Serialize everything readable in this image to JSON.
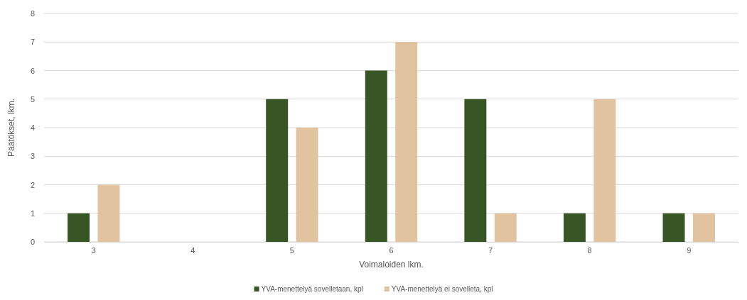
{
  "chart_data": {
    "type": "bar",
    "xlabel": "Voimaloiden lkm.",
    "ylabel": "Päätökset, lkm.",
    "categories": [
      "3",
      "4",
      "5",
      "6",
      "7",
      "8",
      "9"
    ],
    "series": [
      {
        "name": "YVA-menettelyä sovelletaan, kpl",
        "color": "#375623",
        "values": [
          1,
          0,
          5,
          6,
          5,
          1,
          1
        ]
      },
      {
        "name": "YVA-menettelyä ei sovelleta, kpl",
        "color": "#e2c3a0",
        "values": [
          2,
          0,
          4,
          7,
          1,
          5,
          1
        ]
      }
    ],
    "ylim": [
      0,
      8
    ],
    "yticks": [
      0,
      1,
      2,
      3,
      4,
      5,
      6,
      7,
      8
    ],
    "grid": "y",
    "legend": "bottom"
  }
}
